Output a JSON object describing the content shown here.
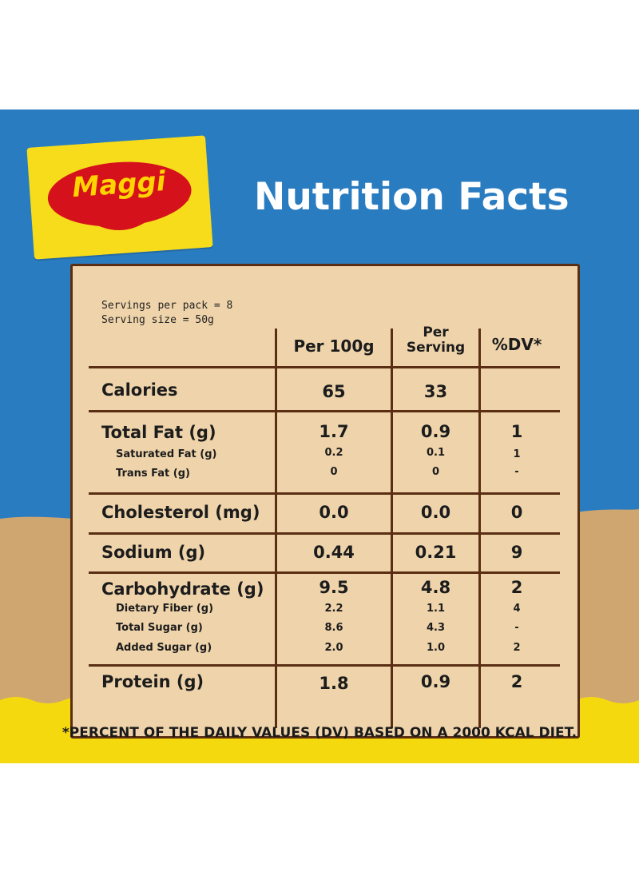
{
  "brand": {
    "name": "Maggi",
    "registered": "®"
  },
  "title": "Nutrition Facts",
  "servings": {
    "per_pack": "Servings per pack = 8",
    "size": "Serving size = 50g"
  },
  "columns": {
    "per100": "Per 100g",
    "per_serving_1": "Per",
    "per_serving_2": "Serving",
    "dv": "%DV*"
  },
  "rows": [
    {
      "label": "Calories",
      "per100": "65",
      "serving": "33",
      "dv": ""
    },
    {
      "label": "Total Fat (g)",
      "per100": "1.7",
      "serving": "0.9",
      "dv": "1"
    },
    {
      "label": "Saturated Fat (g)",
      "per100": "0.2",
      "serving": "0.1",
      "dv": "1"
    },
    {
      "label": "Trans Fat (g)",
      "per100": "0",
      "serving": "0",
      "dv": "-"
    },
    {
      "label": "Cholesterol (mg)",
      "per100": "0.0",
      "serving": "0.0",
      "dv": "0"
    },
    {
      "label": "Sodium (g)",
      "per100": "0.44",
      "serving": "0.21",
      "dv": "9"
    },
    {
      "label": "Carbohydrate (g)",
      "per100": "9.5",
      "serving": "4.8",
      "dv": "2"
    },
    {
      "label": "Dietary Fiber (g)",
      "per100": "2.2",
      "serving": "1.1",
      "dv": "4"
    },
    {
      "label": "Total Sugar (g)",
      "per100": "8.6",
      "serving": "4.3",
      "dv": "-"
    },
    {
      "label": "Added Sugar (g)",
      "per100": "2.0",
      "serving": "1.0",
      "dv": "2"
    },
    {
      "label": "Protein (g)",
      "per100": "1.8",
      "serving": "0.9",
      "dv": "2"
    }
  ],
  "footnote": "*PERCENT OF THE DAILY VALUES (DV) BASED ON A 2000 KCAL DIET.",
  "colors": {
    "blue": "#2a7cc1",
    "sand": "#cfa670",
    "yellow": "#f5d90f",
    "card": "#efd4ab",
    "border": "#5a2e13",
    "logo_red": "#d5121c"
  }
}
